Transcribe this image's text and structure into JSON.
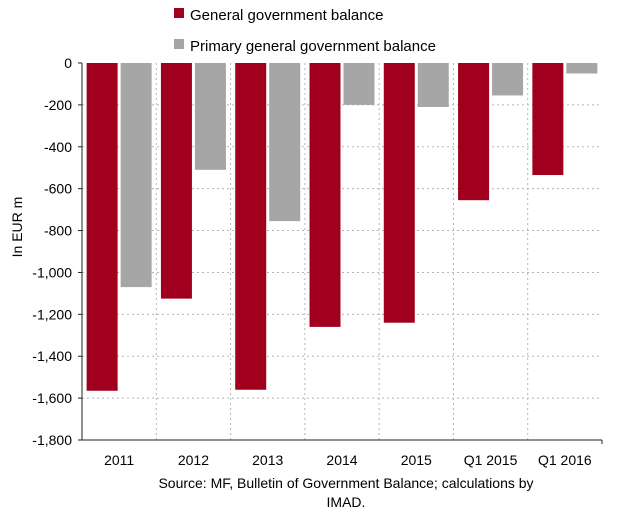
{
  "chart_data": {
    "type": "bar",
    "categories": [
      "2011",
      "2012",
      "2013",
      "2014",
      "2015",
      "Q1 2015",
      "Q1 2016"
    ],
    "series": [
      {
        "name": "General government balance",
        "color": "#a0001d",
        "values": [
          -1565,
          -1125,
          -1560,
          -1260,
          -1240,
          -655,
          -535
        ]
      },
      {
        "name": "Primary general government balance",
        "color": "#a6a6a6",
        "values": [
          -1070,
          -510,
          -755,
          -200,
          -210,
          -155,
          -50
        ]
      }
    ],
    "ylabel": "In EUR m",
    "ylim": [
      -1800,
      0
    ],
    "yticks": [
      0,
      -200,
      -400,
      -600,
      -800,
      -1000,
      -1200,
      -1400,
      -1600,
      -1800
    ],
    "ytick_labels": [
      "0",
      "-200",
      "-400",
      "-600",
      "-800",
      "-1,000",
      "-1,200",
      "-1,400",
      "-1,600",
      "-1,800"
    ],
    "grid": true,
    "legend_position": "top"
  },
  "source_note": {
    "line1": "Source: MF, Bulletin of Government Balance; calculations by",
    "line2": "IMAD."
  }
}
